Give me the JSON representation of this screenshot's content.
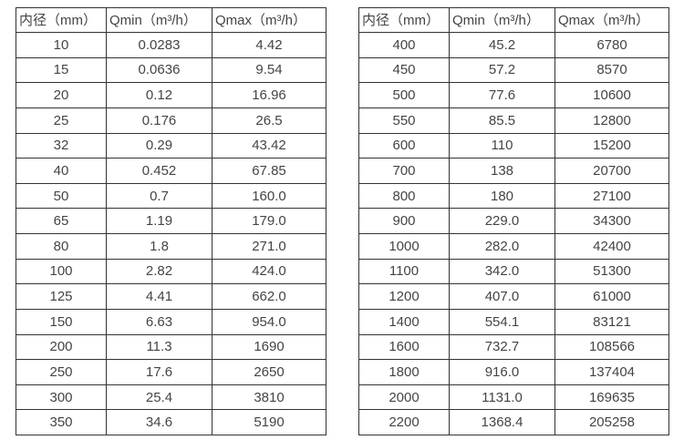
{
  "colors": {
    "background": "#ffffff",
    "border": "#333333",
    "text": "#444444"
  },
  "chart_data": [
    {
      "type": "table",
      "title": "",
      "columns": [
        "内径（mm）",
        "Qmin（m³/h）",
        "Qmax（m³/h）"
      ],
      "rows": [
        [
          "10",
          "0.0283",
          "4.42"
        ],
        [
          "15",
          "0.0636",
          "9.54"
        ],
        [
          "20",
          "0.12",
          "16.96"
        ],
        [
          "25",
          "0.176",
          "26.5"
        ],
        [
          "32",
          "0.29",
          "43.42"
        ],
        [
          "40",
          "0.452",
          "67.85"
        ],
        [
          "50",
          "0.7",
          "160.0"
        ],
        [
          "65",
          "1.19",
          "179.0"
        ],
        [
          "80",
          "1.8",
          "271.0"
        ],
        [
          "100",
          "2.82",
          "424.0"
        ],
        [
          "125",
          "4.41",
          "662.0"
        ],
        [
          "150",
          "6.63",
          "954.0"
        ],
        [
          "200",
          "11.3",
          "1690"
        ],
        [
          "250",
          "17.6",
          "2650"
        ],
        [
          "300",
          "25.4",
          "3810"
        ],
        [
          "350",
          "34.6",
          "5190"
        ]
      ]
    },
    {
      "type": "table",
      "title": "",
      "columns": [
        "内径（mm）",
        "Qmin（m³/h）",
        "Qmax（m³/h）"
      ],
      "rows": [
        [
          "400",
          "45.2",
          "6780"
        ],
        [
          "450",
          "57.2",
          "8570"
        ],
        [
          "500",
          "77.6",
          "10600"
        ],
        [
          "550",
          "85.5",
          "12800"
        ],
        [
          "600",
          "110",
          "15200"
        ],
        [
          "700",
          "138",
          "20700"
        ],
        [
          "800",
          "180",
          "27100"
        ],
        [
          "900",
          "229.0",
          "34300"
        ],
        [
          "1000",
          "282.0",
          "42400"
        ],
        [
          "1100",
          "342.0",
          "51300"
        ],
        [
          "1200",
          "407.0",
          "61000"
        ],
        [
          "1400",
          "554.1",
          "83121"
        ],
        [
          "1600",
          "732.7",
          "108566"
        ],
        [
          "1800",
          "916.0",
          "137404"
        ],
        [
          "2000",
          "1131.0",
          "169635"
        ],
        [
          "2200",
          "1368.4",
          "205258"
        ]
      ]
    }
  ]
}
